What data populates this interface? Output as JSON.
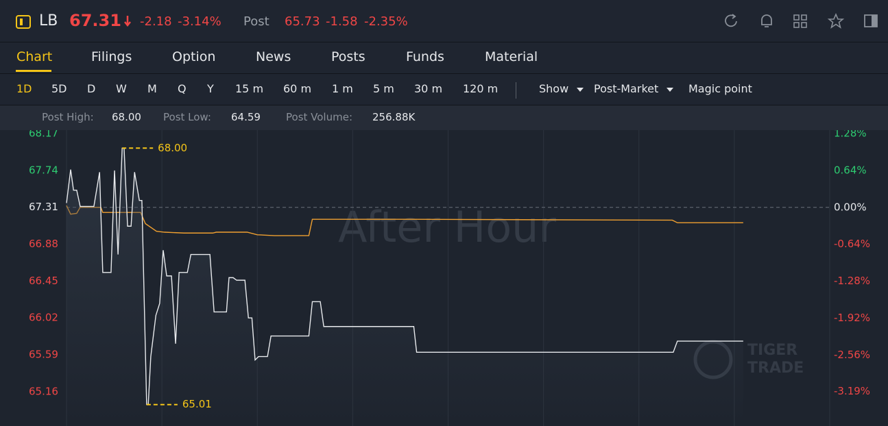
{
  "header": {
    "symbol": "LB",
    "price": 67.31,
    "change": -2.18,
    "change_pct": "-3.14%",
    "post_label": "Post",
    "post_price": 65.73,
    "post_change": -1.58,
    "post_change_pct": "-2.35%"
  },
  "tabs": [
    "Chart",
    "Filings",
    "Option",
    "News",
    "Posts",
    "Funds",
    "Material"
  ],
  "toolbar": {
    "periods": [
      "1D",
      "5D",
      "D",
      "W",
      "M",
      "Q",
      "Y",
      "15 m",
      "60 m",
      "1 m",
      "5 m",
      "30 m",
      "120 m"
    ],
    "show": "Show",
    "session": "Post-Market",
    "magic": "Magic point"
  },
  "stats": [
    {
      "label": "Post High:",
      "value": "68.00"
    },
    {
      "label": "Post Low:",
      "value": "64.59"
    },
    {
      "label": "Post Volume:",
      "value": "256.88K"
    }
  ],
  "chart_data": {
    "type": "line",
    "watermark": "After Hour",
    "logo": [
      "TIGER",
      "TRADE"
    ],
    "xlim": [
      0,
      240
    ],
    "xticks": [
      0,
      30,
      60,
      90,
      120,
      150,
      180,
      210,
      240
    ],
    "ylim": [
      64.76,
      68.21
    ],
    "yticks": [
      68.17,
      67.74,
      67.31,
      66.88,
      66.45,
      66.02,
      65.59,
      65.16
    ],
    "y2lim": [
      -3.79,
      1.34
    ],
    "y2ticks": [
      {
        "value": 1.28,
        "label": "1.28%"
      },
      {
        "value": 0.64,
        "label": "0.64%"
      },
      {
        "value": 0,
        "label": "0.00%"
      },
      {
        "value": -0.64,
        "label": "-0.64%"
      },
      {
        "value": -1.28,
        "label": "-1.28%"
      },
      {
        "value": -1.92,
        "label": "-1.92%"
      },
      {
        "value": -2.56,
        "label": "-2.56%"
      },
      {
        "value": -3.19,
        "label": "-3.19%"
      }
    ],
    "grid": true,
    "series": [
      {
        "color": "#e8eaed",
        "x": [
          0,
          1.3,
          2.2,
          3.2,
          4.3,
          8.6,
          10.4,
          11.4,
          14.0,
          15.1,
          16.2,
          17.5,
          18.1,
          19.2,
          20.3,
          21.4,
          22.9,
          23.7,
          25.2,
          25.7,
          26.5,
          28.1,
          29.3,
          30.4,
          31.5,
          33.0,
          34.3,
          35.4,
          38.0,
          39.1,
          45.1,
          46.4,
          50.3,
          51.1,
          52.4,
          53.5,
          56.1,
          57.2,
          58.3,
          59.3,
          60.4,
          63.2,
          64.3,
          76.2,
          77.3,
          79.8,
          80.9,
          109.2,
          110.1,
          190.8,
          192.1,
          212.8
        ],
        "values": [
          67.36,
          67.75,
          67.51,
          67.51,
          67.32,
          67.32,
          67.72,
          66.55,
          66.55,
          67.74,
          66.76,
          68.0,
          68.0,
          67.09,
          67.09,
          67.72,
          67.39,
          67.39,
          65.01,
          65.01,
          65.57,
          66.05,
          66.19,
          66.81,
          66.51,
          66.51,
          65.72,
          66.55,
          66.55,
          66.76,
          66.76,
          66.09,
          66.09,
          66.49,
          66.49,
          66.46,
          66.46,
          66.02,
          66.02,
          65.53,
          65.57,
          65.57,
          65.81,
          65.81,
          66.21,
          66.21,
          65.92,
          65.92,
          65.62,
          65.62,
          65.75,
          65.75
        ]
      },
      {
        "color": "#f0a030",
        "x": [
          0,
          1.3,
          3.2,
          4.3,
          10.8,
          11.4,
          23.3,
          24.8,
          28.3,
          30.8,
          36.9,
          46.0,
          47.1,
          56.8,
          60.0,
          65.4,
          76.2,
          77.3,
          108.6,
          190.5,
          192.1,
          212.8
        ],
        "values": [
          67.33,
          67.23,
          67.24,
          67.31,
          67.31,
          67.25,
          67.25,
          67.12,
          67.03,
          67.02,
          67.01,
          67.01,
          67.02,
          67.02,
          66.99,
          66.98,
          66.98,
          67.17,
          67.17,
          67.16,
          67.13,
          67.13
        ]
      }
    ],
    "annotations": [
      {
        "value": 68.0,
        "label": "68.00"
      },
      {
        "value": 65.01,
        "label": "65.01"
      }
    ]
  }
}
